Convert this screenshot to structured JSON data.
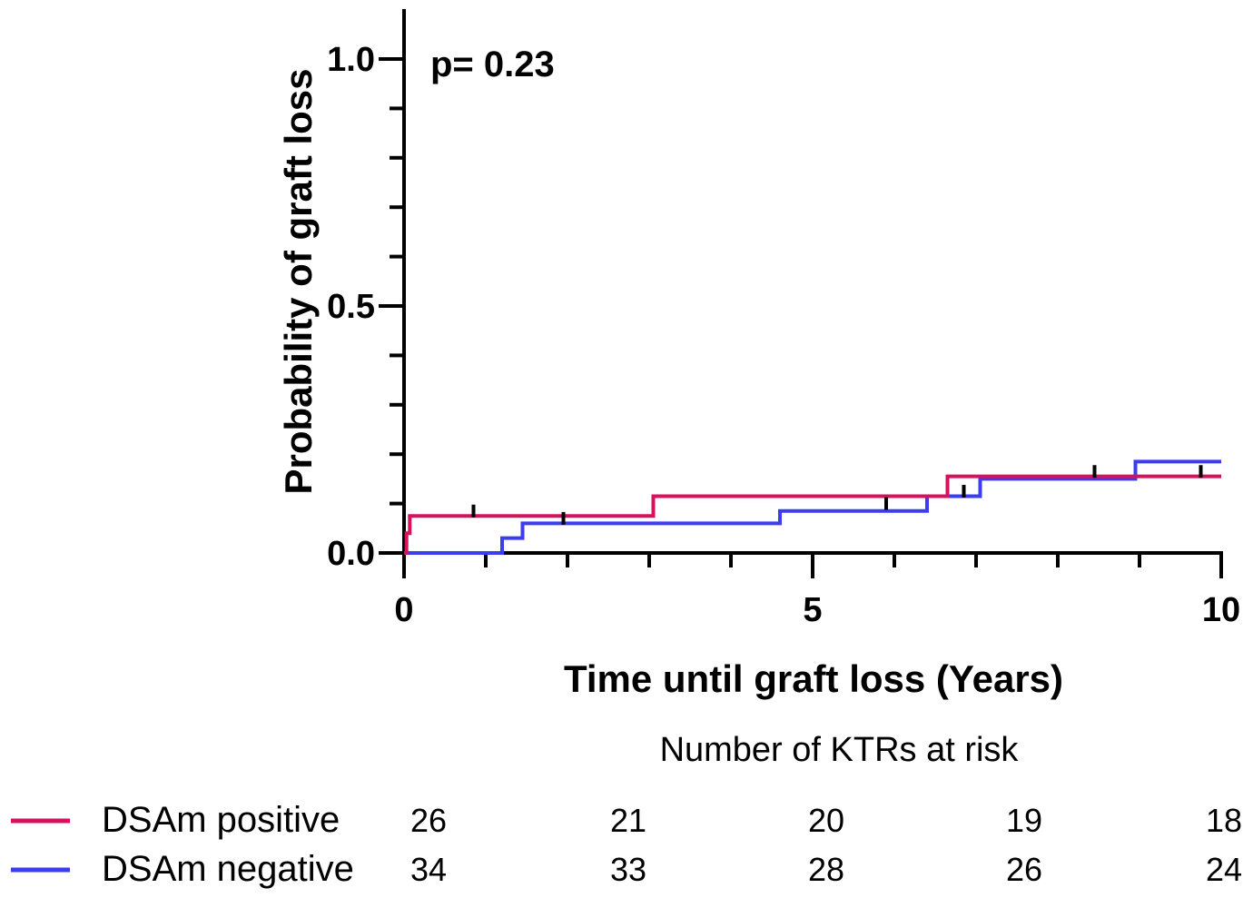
{
  "chart_data": {
    "type": "line",
    "subtype": "kaplan-meier step",
    "xlabel": "Time until graft loss (Years)",
    "ylabel": "Probability of graft loss",
    "xlim": [
      0,
      10
    ],
    "ylim": [
      0,
      1.1
    ],
    "x_ticks": [
      0,
      5,
      10
    ],
    "x_tick_labels": [
      "0",
      "5",
      "10"
    ],
    "y_ticks": [
      0.0,
      0.5,
      1.0
    ],
    "y_tick_labels": [
      "0.0",
      "0.5",
      "1.0"
    ],
    "annotation": "p= 0.23",
    "series": [
      {
        "name": "DSAm positive",
        "color": "#d6115e",
        "steps": [
          [
            0,
            0.0
          ],
          [
            0.03,
            0.04
          ],
          [
            0.07,
            0.075
          ],
          [
            3.05,
            0.115
          ],
          [
            6.65,
            0.155
          ],
          [
            10,
            0.155
          ]
        ],
        "censor_marks": [
          [
            0.85,
            0.085
          ],
          [
            1.95,
            0.07
          ],
          [
            5.9,
            0.1
          ],
          [
            8.45,
            0.165
          ],
          [
            9.75,
            0.165
          ]
        ]
      },
      {
        "name": "DSAm negative",
        "color": "#3c3cf0",
        "steps": [
          [
            0,
            0.0
          ],
          [
            1.2,
            0.03
          ],
          [
            1.45,
            0.06
          ],
          [
            4.6,
            0.085
          ],
          [
            6.4,
            0.115
          ],
          [
            7.05,
            0.15
          ],
          [
            8.95,
            0.185
          ],
          [
            10,
            0.185
          ]
        ],
        "censor_marks": [
          [
            6.85,
            0.125
          ]
        ]
      }
    ],
    "risk_table": {
      "title": "Number of KTRs at risk",
      "rows": [
        {
          "name": "DSAm positive",
          "color": "#d6115e",
          "values": [
            "26",
            "21",
            "20",
            "19",
            "18"
          ]
        },
        {
          "name": "DSAm negative",
          "color": "#3c3cf0",
          "values": [
            "34",
            "33",
            "28",
            "26",
            "24"
          ]
        }
      ]
    }
  }
}
